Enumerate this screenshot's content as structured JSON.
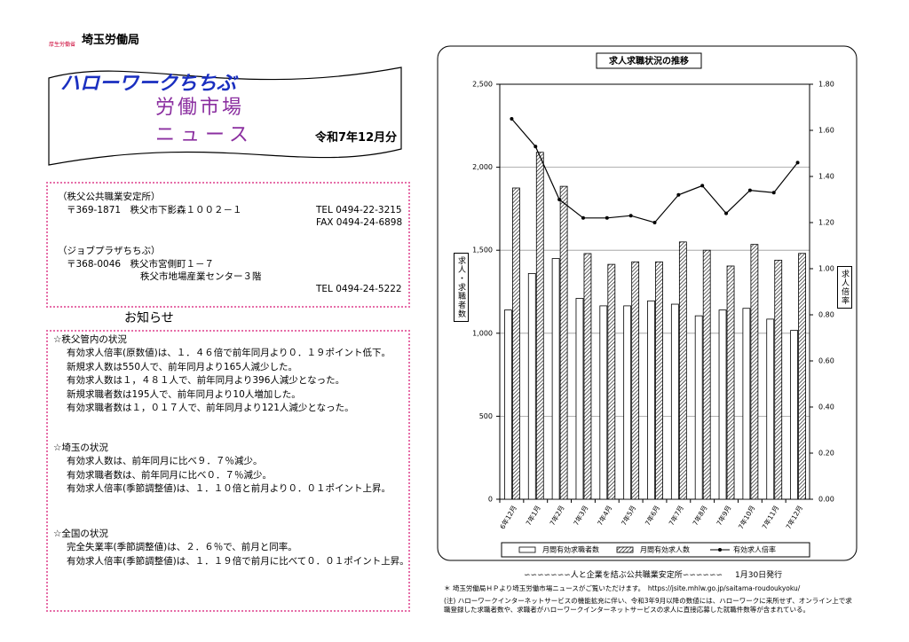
{
  "header": {
    "ministry": "厚生労働省",
    "bureau": "埼玉労働局",
    "title1": "ハローワークちちぶ",
    "title2": "労働市場",
    "title3": "ニュース",
    "issue": "令和7年12月分"
  },
  "offices": [
    {
      "name": "（秩父公共職業安定所）",
      "address": [
        "〒369-1871　秩父市下影森１００２－１"
      ],
      "tel": "TEL 0494-22-3215",
      "fax": "FAX 0494-24-6898"
    },
    {
      "name": "（ジョブプラザちちぶ）",
      "address": [
        "〒368-0046　秩父市宮側町１－７",
        "秩父市地場産業センター３階"
      ],
      "tel": "TEL 0494-24-5222"
    }
  ],
  "notice": {
    "heading": "お知らせ",
    "sections": [
      {
        "title": "☆秩父管内の状況",
        "lines": [
          "有効求人倍率(原数値)は、１．４６倍で前年同月より０．１９ポイント低下。",
          "新規求人数は550人で、前年同月より165人減少した。",
          "有効求人数は１，４８１人で、前年同月より396人減少となった。",
          "新規求職者数は195人で、前年同月より10人増加した。",
          "有効求職者数は１，０１７人で、前年同月より121人減少となった。"
        ]
      },
      {
        "title": "☆埼玉の状況",
        "lines": [
          "有効求人数は、前年同月に比べ９．７％減少。",
          "有効求職者数は、前年同月に比べ０．７％減少。",
          "有効求人倍率(季節調整値)は、１．１０倍と前月より０．０１ポイント上昇。"
        ]
      },
      {
        "title": "☆全国の状況",
        "lines": [
          "完全失業率(季節調整値)は、２．６％で、前月と同率。",
          "有効求人倍率(季節調整値)は、１．１９倍で前月に比べて０．０１ポイント上昇。"
        ]
      }
    ]
  },
  "footer": {
    "slogan": "∽∽∽∽∽∽∽人と企業を結ぶ公共職業安定所∽∽∽∽∽∽",
    "date": "1月30日発行",
    "notes": [
      "＊ 埼玉労働局ＨＰより埼玉労働市場ニュースがご覧いただけます。　https://jsite.mhlw.go.jp/saitama-roudoukyoku/",
      "(注) ハローワークインターネットサービスの機能拡充に伴い、令和3年9月以降の数値には、ハローワークに来所せず、オンライン上で求職登録した求職者数や、求職者がハローワークインターネットサービスの求人に直接応募した就職件数等が含まれている。"
    ]
  },
  "chart_data": {
    "type": "bar",
    "title": "求人求職状況の推移",
    "ylabel": "求人・求職者数",
    "y2label": "求人倍率",
    "categories": [
      "6年12月",
      "7年1月",
      "7年2月",
      "7年3月",
      "7年4月",
      "7年5月",
      "7年6月",
      "7年7月",
      "7年8月",
      "7年9月",
      "7年10月",
      "7年11月",
      "7年12月"
    ],
    "series": [
      {
        "name": "月間有効求職者数",
        "color": "#ffffff",
        "values": [
          1140,
          1360,
          1450,
          1210,
          1165,
          1165,
          1195,
          1175,
          1105,
          1140,
          1150,
          1085,
          1017
        ]
      },
      {
        "name": "月間有効求人数",
        "color": "#ffffff",
        "hatch": true,
        "values": [
          1875,
          2090,
          1885,
          1480,
          1415,
          1430,
          1430,
          1550,
          1500,
          1405,
          1535,
          1440,
          1481
        ]
      },
      {
        "name": "有効求人倍率",
        "type": "line",
        "axis": "y2",
        "color": "#000000",
        "values": [
          1.65,
          1.53,
          1.3,
          1.22,
          1.22,
          1.23,
          1.2,
          1.32,
          1.36,
          1.24,
          1.34,
          1.33,
          1.46
        ]
      }
    ],
    "ylim": [
      0,
      2500
    ],
    "yticks": [
      0,
      {
        "value": 500,
        "label": "500"
      },
      {
        "value": 1000,
        "label": "1,000"
      },
      {
        "value": 1500,
        "label": "1,500"
      },
      {
        "value": 2000,
        "label": "2,000"
      },
      {
        "value": 2500,
        "label": "2,500"
      }
    ],
    "y2lim": [
      0,
      1.8
    ],
    "y2ticks": [
      {
        "value": 0,
        "label": "0.00"
      },
      {
        "value": 0.2,
        "label": "0.20"
      },
      {
        "value": 0.4,
        "label": "0.40"
      },
      {
        "value": 0.6,
        "label": "0.60"
      },
      {
        "value": 0.8,
        "label": "0.80"
      },
      {
        "value": 1,
        "label": "1.00"
      },
      {
        "value": 1.2,
        "label": "1.20"
      },
      {
        "value": 1.4,
        "label": "1.40"
      },
      {
        "value": 1.6,
        "label": "1.60"
      },
      {
        "value": 1.8,
        "label": "1.80"
      }
    ],
    "grid": true,
    "legend": "bottom"
  }
}
